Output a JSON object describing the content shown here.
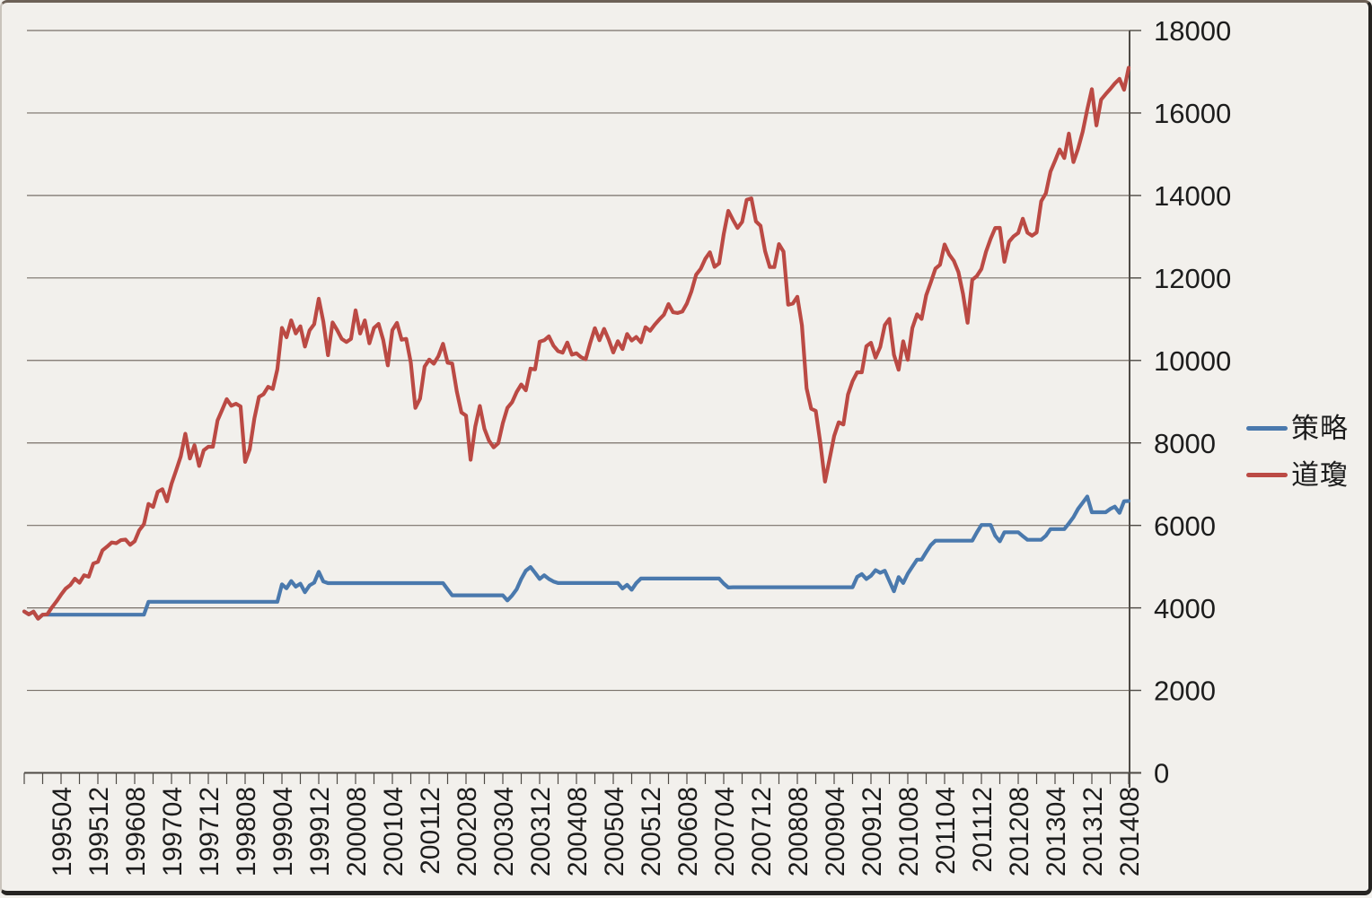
{
  "chart_data": {
    "type": "line",
    "title": "",
    "x_range": {
      "start": "199408",
      "end": "201408",
      "freq": "monthly"
    },
    "x_tick_labels": [
      "199504",
      "199512",
      "199608",
      "199704",
      "199712",
      "199808",
      "199904",
      "199912",
      "200008",
      "200104",
      "200112",
      "200208",
      "200304",
      "200312",
      "200408",
      "200504",
      "200512",
      "200608",
      "200704",
      "200712",
      "200808",
      "200904",
      "200912",
      "201008",
      "201104",
      "201112",
      "201208",
      "201304",
      "201312",
      "201408"
    ],
    "x_tick_label_start_index": 8,
    "x_tick_label_interval": 8,
    "x_minor_tick_interval": 4,
    "ylim": [
      0,
      18000
    ],
    "y_tick_step": 2000,
    "y_tick_labels": [
      "0",
      "2000",
      "4000",
      "6000",
      "8000",
      "10000",
      "12000",
      "14000",
      "16000",
      "18000"
    ],
    "y_axis_side": "right",
    "grid": "horizontal",
    "legend_position": "right",
    "colors": {
      "background": "#f2f0ec",
      "gridline": "#787069",
      "axis": "#4e4a45",
      "label_text": "#1d1d1d"
    },
    "series": [
      {
        "name": "策略",
        "color": "#4a79ad",
        "values": [
          3913,
          3843,
          3908,
          3739,
          3834,
          3834,
          3834,
          3834,
          3834,
          3834,
          3834,
          3834,
          3834,
          3834,
          3834,
          3834,
          3834,
          3834,
          3834,
          3834,
          3834,
          3834,
          3834,
          3834,
          3834,
          3834,
          3834,
          4148,
          4148,
          4148,
          4148,
          4148,
          4148,
          4148,
          4148,
          4148,
          4148,
          4148,
          4148,
          4148,
          4148,
          4148,
          4148,
          4148,
          4148,
          4148,
          4148,
          4148,
          4148,
          4148,
          4148,
          4148,
          4148,
          4148,
          4148,
          4148,
          4571,
          4475,
          4650,
          4515,
          4587,
          4381,
          4547,
          4611,
          4874,
          4640,
          4600,
          4600,
          4600,
          4600,
          4600,
          4600,
          4600,
          4600,
          4600,
          4600,
          4600,
          4600,
          4600,
          4600,
          4600,
          4600,
          4600,
          4600,
          4600,
          4600,
          4600,
          4600,
          4600,
          4600,
          4600,
          4600,
          4450,
          4304,
          4304,
          4304,
          4304,
          4304,
          4304,
          4304,
          4304,
          4304,
          4304,
          4304,
          4304,
          4180,
          4300,
          4450,
          4700,
          4900,
          4990,
          4850,
          4700,
          4790,
          4700,
          4640,
          4602,
          4602,
          4602,
          4602,
          4602,
          4602,
          4602,
          4602,
          4602,
          4602,
          4602,
          4602,
          4602,
          4602,
          4470,
          4560,
          4440,
          4600,
          4711,
          4711,
          4711,
          4711,
          4711,
          4711,
          4711,
          4711,
          4711,
          4711,
          4711,
          4711,
          4711,
          4711,
          4711,
          4711,
          4711,
          4711,
          4590,
          4493,
          4500,
          4500,
          4500,
          4500,
          4500,
          4500,
          4500,
          4500,
          4500,
          4500,
          4500,
          4500,
          4500,
          4500,
          4500,
          4500,
          4500,
          4500,
          4500,
          4500,
          4500,
          4500,
          4500,
          4500,
          4500,
          4500,
          4500,
          4750,
          4820,
          4700,
          4780,
          4913,
          4850,
          4900,
          4650,
          4402,
          4746,
          4602,
          4830,
          5000,
          5170,
          5170,
          5350,
          5520,
          5630,
          5630,
          5630,
          5630,
          5630,
          5630,
          5630,
          5630,
          5630,
          5830,
          6010,
          6010,
          6010,
          5750,
          5615,
          5833,
          5833,
          5833,
          5833,
          5740,
          5652,
          5652,
          5652,
          5652,
          5750,
          5910,
          5910,
          5910,
          5910,
          6050,
          6200,
          6400,
          6550,
          6700,
          6320,
          6320,
          6320,
          6320,
          6400,
          6457,
          6304,
          6587,
          6590
        ]
      },
      {
        "name": "道瓊",
        "color": "#bb4a44",
        "values": [
          3913,
          3843,
          3908,
          3739,
          3834,
          3844,
          4011,
          4157,
          4321,
          4465,
          4556,
          4708,
          4610,
          4789,
          4756,
          5075,
          5117,
          5395,
          5486,
          5587,
          5569,
          5643,
          5655,
          5529,
          5616,
          5882,
          6029,
          6522,
          6448,
          6813,
          6878,
          6584,
          7009,
          7331,
          7673,
          8223,
          7622,
          7945,
          7442,
          7823,
          7908,
          7907,
          8546,
          8800,
          9063,
          8900,
          8952,
          8883,
          7539,
          7843,
          8592,
          9117,
          9181,
          9359,
          9307,
          9786,
          10789,
          10560,
          10971,
          10655,
          10829,
          10337,
          10730,
          10878,
          11497,
          10941,
          10128,
          10922,
          10734,
          10522,
          10448,
          10522,
          11215,
          10651,
          10971,
          10414,
          10787,
          10887,
          10495,
          9879,
          10735,
          10912,
          10502,
          10523,
          9950,
          8848,
          9075,
          9852,
          10021,
          9920,
          10106,
          10404,
          9946,
          9925,
          9243,
          8737,
          8664,
          7592,
          8397,
          8896,
          8342,
          8054,
          7891,
          7992,
          8480,
          8850,
          8985,
          9234,
          9416,
          9275,
          9801,
          9782,
          10454,
          10488,
          10584,
          10358,
          10226,
          10188,
          10435,
          10140,
          10174,
          10080,
          10027,
          10428,
          10783,
          10490,
          10766,
          10504,
          10193,
          10467,
          10275,
          10641,
          10482,
          10569,
          10440,
          10806,
          10718,
          10865,
          10993,
          11109,
          11367,
          11168,
          11150,
          11186,
          11381,
          11679,
          12080,
          12222,
          12463,
          12622,
          12269,
          12354,
          13063,
          13628,
          13409,
          13212,
          13358,
          13896,
          13930,
          13372,
          13265,
          12650,
          12266,
          12263,
          12820,
          12638,
          11350,
          11378,
          11544,
          10851,
          9325,
          8829,
          8776,
          8001,
          7063,
          7609,
          8168,
          8500,
          8447,
          9172,
          9496,
          9712,
          9713,
          10345,
          10428,
          10067,
          10325,
          10857,
          11009,
          10137,
          9774,
          10466,
          10015,
          10788,
          11118,
          11006,
          11578,
          11892,
          12226,
          12320,
          12811,
          12570,
          12414,
          12143,
          11614,
          10913,
          11955,
          12046,
          12218,
          12633,
          12952,
          13212,
          13214,
          12393,
          12880,
          13009,
          13091,
          13437,
          13096,
          13026,
          13104,
          13861,
          14054,
          14579,
          14840,
          15116,
          14910,
          15500,
          14810,
          15130,
          15546,
          16086,
          16577,
          15699,
          16322,
          16458,
          16581,
          16717,
          16827,
          16563,
          17098
        ]
      }
    ]
  },
  "legend": {
    "items": [
      {
        "label": "策略"
      },
      {
        "label": "道瓊"
      }
    ]
  }
}
